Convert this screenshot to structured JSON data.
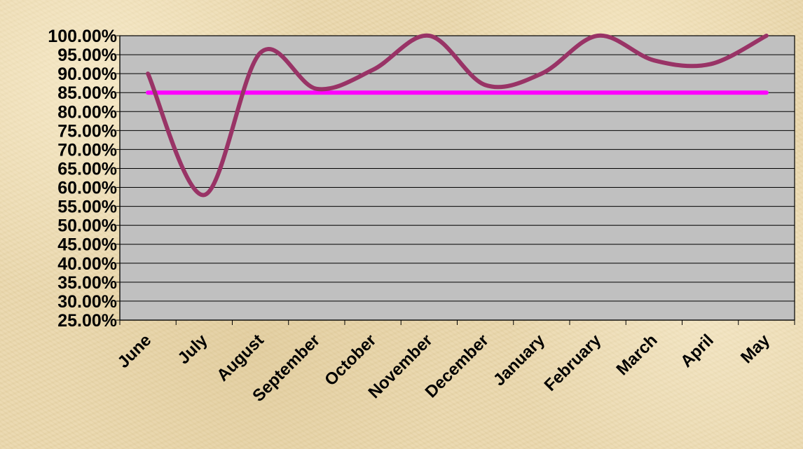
{
  "chart_data": {
    "type": "line",
    "title": "",
    "xlabel": "",
    "ylabel": "",
    "categories": [
      "June",
      "July",
      "August",
      "September",
      "October",
      "November",
      "December",
      "January",
      "February",
      "March",
      "April",
      "May"
    ],
    "series": [
      {
        "values": [
          90.0,
          58.0,
          95.5,
          86.0,
          91.0,
          100.0,
          87.0,
          90.0,
          100.0,
          93.5,
          92.5,
          100.0
        ],
        "color": "#993366",
        "smooth": true
      },
      {
        "values": [
          85.0,
          85.0,
          85.0,
          85.0,
          85.0,
          85.0,
          85.0,
          85.0,
          85.0,
          85.0,
          85.0,
          85.0
        ],
        "color": "#ff00ff",
        "smooth": false
      }
    ],
    "y_ticks": [
      "25.00%",
      "30.00%",
      "35.00%",
      "40.00%",
      "45.00%",
      "50.00%",
      "55.00%",
      "60.00%",
      "65.00%",
      "70.00%",
      "75.00%",
      "80.00%",
      "85.00%",
      "90.00%",
      "95.00%",
      "100.00%"
    ],
    "ylim": [
      25,
      100
    ],
    "y_step": 5,
    "grid": true,
    "legend": "none",
    "plot_background": "#c0c0c0",
    "gridline_color": "#000000"
  }
}
